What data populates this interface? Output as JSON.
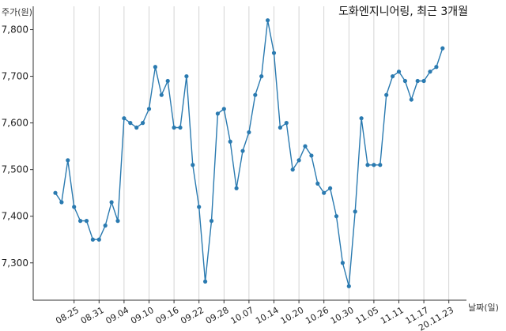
{
  "chart_data": {
    "type": "line",
    "title": "도화엔지니어링, 최근 3개월",
    "ylabel": "주가(원)",
    "xlabel": "날짜(일)",
    "ylim": [
      7220,
      7850
    ],
    "yticks": [
      7300,
      7400,
      7500,
      7600,
      7700,
      7800
    ],
    "ytick_labels": [
      "7,300",
      "7,400",
      "7,500",
      "7,600",
      "7,700",
      "7,800"
    ],
    "xtick_labels": [
      "08.25",
      "08.31",
      "09.04",
      "09.10",
      "09.16",
      "09.22",
      "09.28",
      "10.07",
      "10.14",
      "10.20",
      "10.26",
      "10.30",
      "11.05",
      "11.11",
      "11.17",
      "20.11.23"
    ],
    "xtick_positions": [
      3,
      7,
      11,
      15,
      19,
      23,
      27,
      31,
      35,
      39,
      43,
      47,
      51,
      55,
      59,
      63
    ],
    "grid": "vertical",
    "line_color": "#2a7ab0",
    "series": [
      {
        "values": [
          7450,
          7430,
          7520,
          7420,
          7390,
          7390,
          7350,
          7350,
          7380,
          7430,
          7390,
          7610,
          7600,
          7590,
          7600,
          7630,
          7720,
          7660,
          7690,
          7590,
          7590,
          7700,
          7510,
          7420,
          7260,
          7390,
          7620,
          7630,
          7560,
          7460,
          7540,
          7580,
          7660,
          7700,
          7820,
          7750,
          7590,
          7600,
          7500,
          7520,
          7550,
          7530,
          7470,
          7450,
          7460,
          7400,
          7300,
          7250,
          7410,
          7610,
          7510,
          7510,
          7510,
          7660,
          7700,
          7710,
          7690,
          7650,
          7690,
          7690,
          7710,
          7720,
          7760
        ]
      }
    ]
  }
}
